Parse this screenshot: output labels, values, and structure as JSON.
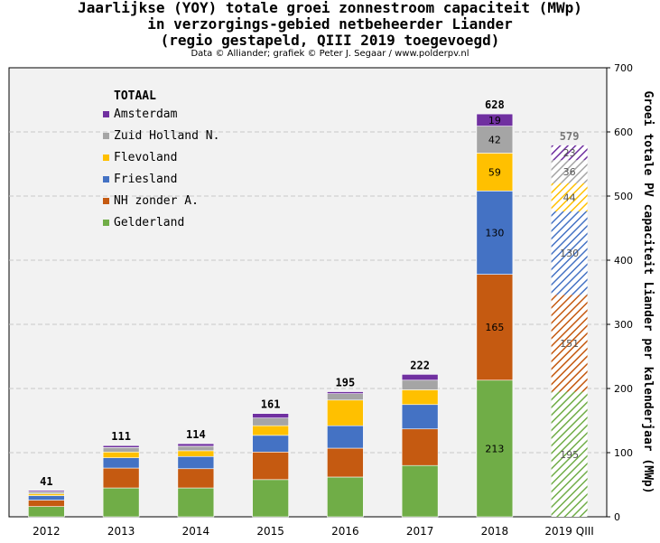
{
  "title_lines": [
    "Jaarlijkse (YOY) totale groei zonnestroom capaciteit (MWp)",
    "in verzorgings-gebied netbeheerder Liander",
    "(regio gestapeld, QIII 2019 toegevoegd)"
  ],
  "subtitle": "Data © Alliander; grafiek © Peter J. Segaar / www.polderpv.nl",
  "chart_data": {
    "type": "bar",
    "stacked": true,
    "categories": [
      "2012",
      "2013",
      "2014",
      "2015",
      "2016",
      "2017",
      "2018",
      "2019 QIII"
    ],
    "ylabel": "Groei totale PV capaciteit Liander per kalenderjaar (MWp)",
    "y_axis_side": "right",
    "ylim": [
      0,
      700
    ],
    "yticks": [
      0,
      100,
      200,
      300,
      400,
      500,
      600,
      700
    ],
    "grid": true,
    "legend_title": "TOTAAL",
    "legend_position": "top-left",
    "totals": [
      41,
      111,
      114,
      161,
      195,
      222,
      628,
      579
    ],
    "series": [
      {
        "name": "Gelderland",
        "color": "#70ad47",
        "values": [
          16,
          45,
          45,
          58,
          62,
          80,
          213,
          195
        ]
      },
      {
        "name": "NH zonder A.",
        "color": "#c55a11",
        "values": [
          10,
          31,
          30,
          43,
          45,
          57,
          165,
          151
        ]
      },
      {
        "name": "Friesland",
        "color": "#4472c4",
        "values": [
          7,
          16,
          19,
          26,
          35,
          38,
          130,
          130
        ]
      },
      {
        "name": "Flevoland",
        "color": "#ffc000",
        "values": [
          3,
          9,
          9,
          15,
          40,
          23,
          59,
          44
        ]
      },
      {
        "name": "Zuid Holland N.",
        "color": "#a5a5a5",
        "values": [
          3,
          7,
          7,
          12,
          10,
          15,
          42,
          36
        ]
      },
      {
        "name": "Amsterdam",
        "color": "#7030a0",
        "values": [
          2,
          3,
          4,
          7,
          3,
          9,
          19,
          23
        ]
      }
    ],
    "data_labels": {
      "2018": [
        "213",
        "165",
        "130",
        "59",
        "42",
        "19"
      ],
      "2019 QIII": [
        "195",
        "151",
        "130",
        "44",
        "36",
        "23"
      ]
    },
    "hatched_category": "2019 QIII"
  }
}
